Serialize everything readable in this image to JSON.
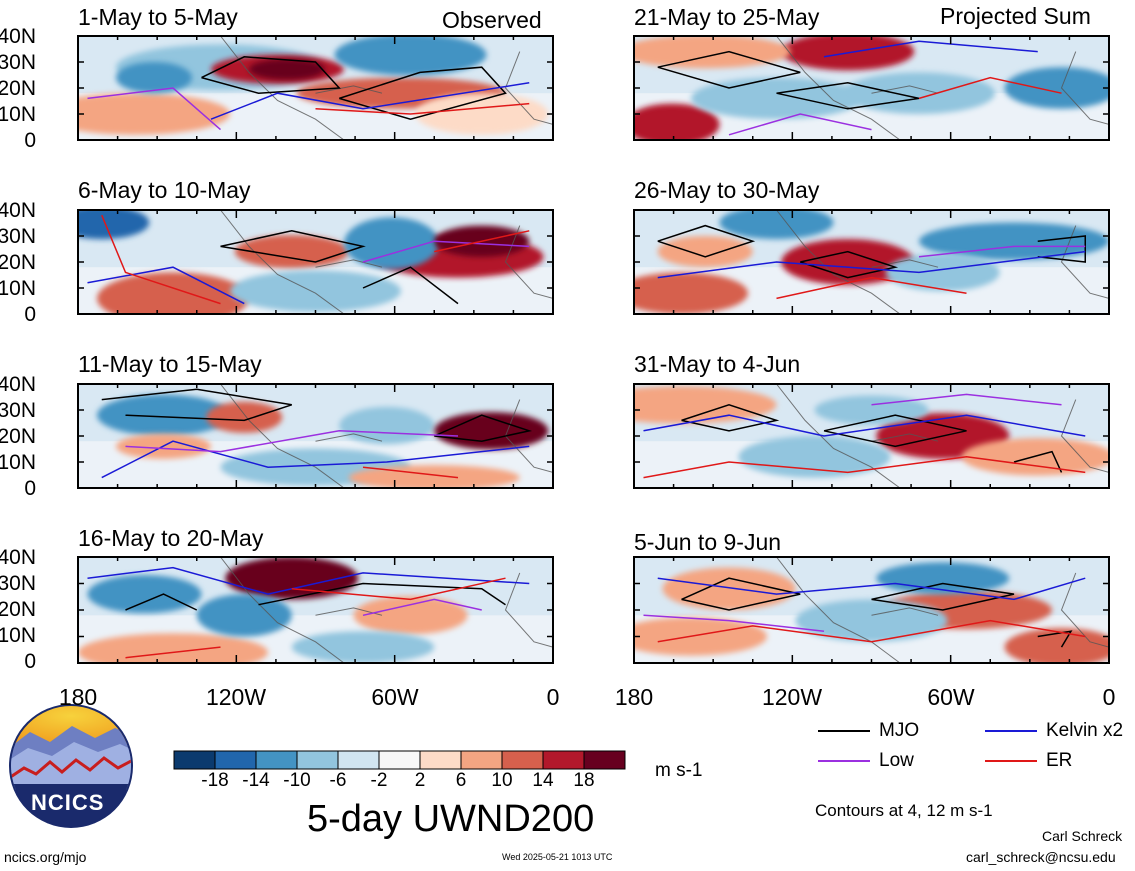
{
  "left_corner_label": "Observed",
  "right_corner_label": "Projected Sum",
  "panels": [
    {
      "title": "1-May to 5-May"
    },
    {
      "title": "6-May to 10-May"
    },
    {
      "title": "11-May to 15-May"
    },
    {
      "title": "16-May to 20-May"
    },
    {
      "title": "21-May to 25-May"
    },
    {
      "title": "26-May to 30-May"
    },
    {
      "title": "31-May to 4-Jun"
    },
    {
      "title": "5-Jun to 9-Jun"
    }
  ],
  "lat_labels": [
    "40N",
    "30N",
    "20N",
    "10N",
    "0"
  ],
  "lon_labels": [
    "180",
    "120W",
    "60W",
    "0"
  ],
  "colorbar": {
    "labels": [
      "-18",
      "-14",
      "-10",
      "-6",
      "-2",
      "2",
      "6",
      "10",
      "14",
      "18"
    ],
    "colors": [
      "#0b3a6e",
      "#2166ac",
      "#4393c3",
      "#92c5de",
      "#d1e5f0",
      "#f7f7f7",
      "#fddbc7",
      "#f4a582",
      "#d6604d",
      "#b2182b",
      "#67001f"
    ],
    "units": "m s-1"
  },
  "title": "5-day UWND200",
  "legend": [
    {
      "label": "MJO",
      "color": "#000000"
    },
    {
      "label": "Kelvin x2",
      "color": "#1a1ad6"
    },
    {
      "label": "Low",
      "color": "#9b30e0"
    },
    {
      "label": "ER",
      "color": "#e01818"
    }
  ],
  "contours_note": "Contours at 4, 12 m s-1",
  "logo_text": "NCICS",
  "footer": {
    "site": "ncics.org/mjo",
    "timestamp": "Wed 2025-05-21 1013 UTC",
    "author": "Carl Schreck",
    "email": "carl_schreck@ncsu.edu"
  },
  "chart_data": {
    "type": "heatmap",
    "title": "5-day UWND200",
    "units": "m s-1",
    "x_axis": {
      "range": [
        "180",
        "0"
      ],
      "tick_labels": [
        "180",
        "120W",
        "60W",
        "0"
      ]
    },
    "y_axis": {
      "range": [
        0,
        40
      ],
      "tick_labels": [
        "0",
        "10N",
        "20N",
        "30N",
        "40N"
      ]
    },
    "color_levels": [
      -18,
      -14,
      -10,
      -6,
      -2,
      2,
      6,
      10,
      14,
      18
    ],
    "contour_levels": [
      4,
      12
    ],
    "contour_series": [
      "MJO",
      "Kelvin x2",
      "Low",
      "ER"
    ],
    "panels": [
      {
        "period": "1-May to 5-May",
        "kind": "Observed"
      },
      {
        "period": "6-May to 10-May",
        "kind": "Observed"
      },
      {
        "period": "11-May to 15-May",
        "kind": "Observed"
      },
      {
        "period": "16-May to 20-May",
        "kind": "Observed"
      },
      {
        "period": "21-May to 25-May",
        "kind": "Projected Sum"
      },
      {
        "period": "26-May to 30-May",
        "kind": "Projected Sum"
      },
      {
        "period": "31-May to 4-Jun",
        "kind": "Projected Sum"
      },
      {
        "period": "5-Jun to 9-Jun",
        "kind": "Projected Sum"
      }
    ]
  }
}
